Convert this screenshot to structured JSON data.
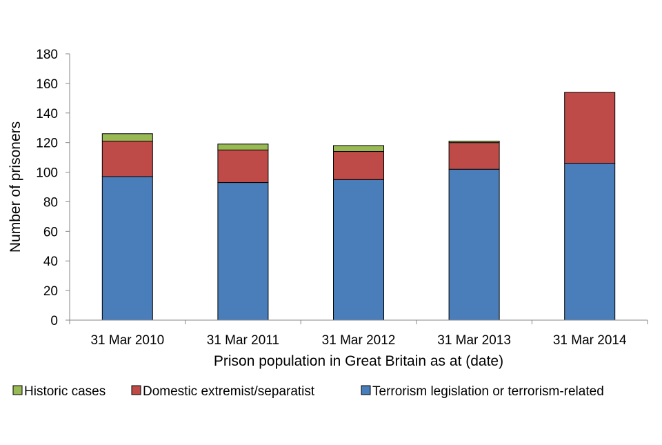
{
  "chart_data": {
    "type": "bar",
    "stacked": true,
    "title": "",
    "xlabel": "Prison population in Great Britain as at (date)",
    "ylabel": "Number of prisoners",
    "ylim": [
      0,
      180
    ],
    "yticks": [
      0,
      20,
      40,
      60,
      80,
      100,
      120,
      140,
      160,
      180
    ],
    "grid": false,
    "legend_position": "bottom",
    "categories": [
      "31 Mar 2010",
      "31 Mar 2011",
      "31 Mar 2012",
      "31 Mar 2013",
      "31 Mar 2014"
    ],
    "series": [
      {
        "name": "Terrorism legislation or terrorism-related",
        "color": "#4a7ebb",
        "values": [
          97,
          93,
          95,
          102,
          106
        ]
      },
      {
        "name": "Domestic extremist/separatist",
        "color": "#be4b48",
        "values": [
          24,
          22,
          19,
          18,
          48
        ]
      },
      {
        "name": "Historic cases",
        "color": "#98b954",
        "values": [
          5,
          4,
          4,
          1,
          0
        ]
      }
    ],
    "legend_order": [
      "Historic cases",
      "Domestic extremist/separatist",
      "Terrorism legislation or terrorism-related"
    ]
  }
}
